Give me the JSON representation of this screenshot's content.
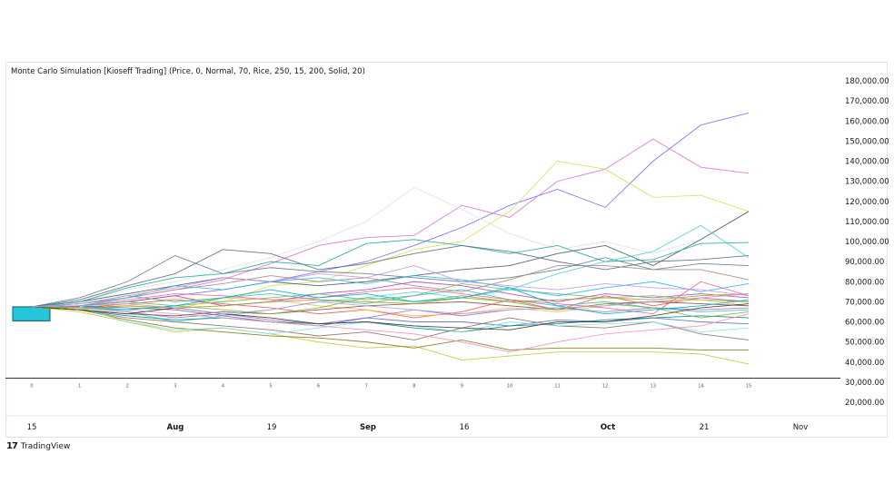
{
  "chart_data": {
    "type": "line",
    "title": "Monte Carlo Simulation [Kioseff Trading] (Price, 0, Normal, 70, Rice, 250, 15, 200, Solid, 20)",
    "ylim": [
      20000,
      180000
    ],
    "y_ticks": [
      "20,000.00",
      "30,000.00",
      "40,000.00",
      "50,000.00",
      "60,000.00",
      "70,000.00",
      "80,000.00",
      "90,000.00",
      "100,000.00",
      "110,000.00",
      "120,000.00",
      "130,000.00",
      "140,000.00",
      "150,000.00",
      "160,000.00",
      "170,000.00",
      "180,000.00"
    ],
    "step_labels": [
      "0",
      "1",
      "2",
      "3",
      "4",
      "5",
      "6",
      "7",
      "8",
      "9",
      "10",
      "11",
      "12",
      "13",
      "14",
      "15"
    ],
    "date_ticks": [
      "15",
      "Aug",
      "19",
      "Sep",
      "16",
      "Oct",
      "21",
      "Nov"
    ],
    "bold_date_ticks": [
      "Aug",
      "Sep",
      "Oct"
    ],
    "start_value": 67500,
    "bar": {
      "open": 67500,
      "close": 60500,
      "color": "#26c6da"
    },
    "series": [
      {
        "color": "#7b68ee",
        "values": [
          67500,
          68000,
          70000,
          73000,
          76000,
          80000,
          85000,
          90000,
          98000,
          107000,
          118000,
          126000,
          117000,
          140000,
          158000,
          164000
        ]
      },
      {
        "color": "#da70d6",
        "values": [
          67500,
          69000,
          72000,
          76000,
          81000,
          89000,
          98000,
          102000,
          103000,
          118000,
          112000,
          130000,
          136000,
          151000,
          137000,
          134000
        ]
      },
      {
        "color": "#d4e157",
        "values": [
          67500,
          66000,
          68000,
          72000,
          70000,
          78000,
          80000,
          88000,
          96000,
          100000,
          115000,
          140000,
          136000,
          122000,
          123000,
          115000
        ]
      },
      {
        "color": "#e0e0e0",
        "values": [
          67500,
          70000,
          76000,
          80000,
          86000,
          92000,
          100000,
          110000,
          127000,
          116000,
          104000,
          96000,
          100000,
          94000,
          101000,
          115000
        ]
      },
      {
        "color": "#455a64",
        "values": [
          67500,
          70000,
          74000,
          78000,
          82000,
          80000,
          78000,
          80000,
          83000,
          86000,
          88000,
          94000,
          98000,
          88000,
          101000,
          115000
        ]
      },
      {
        "color": "#26a69a",
        "values": [
          67500,
          70000,
          77000,
          82000,
          84000,
          90000,
          88000,
          99000,
          101000,
          98000,
          94000,
          98000,
          90000,
          91000,
          99000,
          99500
        ]
      },
      {
        "color": "#607d8b",
        "values": [
          67500,
          72000,
          80000,
          93000,
          84000,
          87000,
          85000,
          84000,
          82000,
          80000,
          82000,
          86000,
          92000,
          86000,
          89000,
          88000
        ]
      },
      {
        "color": "#546e7a",
        "values": [
          67500,
          71000,
          78000,
          84000,
          96000,
          94000,
          86000,
          89000,
          94000,
          98000,
          95000,
          90000,
          86000,
          90000,
          91000,
          93000
        ]
      },
      {
        "color": "#4dd0e1",
        "values": [
          67500,
          68000,
          65000,
          60000,
          63000,
          66000,
          70000,
          72000,
          75000,
          72000,
          76000,
          84000,
          90000,
          95000,
          108000,
          92000
        ]
      },
      {
        "color": "#a1887f",
        "values": [
          67500,
          69000,
          72000,
          76000,
          79000,
          83000,
          80000,
          82000,
          78000,
          75000,
          81000,
          88000,
          88000,
          86000,
          86000,
          81000
        ]
      },
      {
        "color": "#ab47bc",
        "values": [
          67500,
          68000,
          70000,
          73000,
          68000,
          70000,
          74000,
          76000,
          80000,
          78000,
          74000,
          70000,
          74000,
          72000,
          74000,
          72000
        ]
      },
      {
        "color": "#ef5350",
        "values": [
          67500,
          67000,
          69000,
          71000,
          69000,
          67000,
          64000,
          66000,
          62000,
          65000,
          71000,
          66000,
          73000,
          68000,
          72000,
          70000
        ]
      },
      {
        "color": "#66bb6a",
        "values": [
          67500,
          68000,
          70000,
          68000,
          70000,
          72000,
          74000,
          71000,
          73000,
          79000,
          76000,
          74000,
          72000,
          73000,
          71000,
          70000
        ]
      },
      {
        "color": "#ffb74d",
        "values": [
          67500,
          67000,
          68000,
          66000,
          72000,
          71000,
          68000,
          66000,
          63000,
          64000,
          67000,
          65000,
          68000,
          70000,
          71000,
          68000
        ]
      },
      {
        "color": "#9575cd",
        "values": [
          67500,
          67000,
          65000,
          62000,
          64000,
          61000,
          59000,
          62000,
          66000,
          63000,
          66000,
          67000,
          65000,
          67000,
          66000,
          67000
        ]
      },
      {
        "color": "#5c6bc0",
        "values": [
          67500,
          68000,
          67000,
          66000,
          63000,
          60000,
          58000,
          62000,
          60000,
          60000,
          58000,
          61000,
          60000,
          62000,
          60000,
          59000
        ]
      },
      {
        "color": "#00897b",
        "values": [
          67500,
          66000,
          63000,
          61000,
          62000,
          60000,
          59000,
          60000,
          57000,
          55000,
          58000,
          59000,
          61000,
          62000,
          63000,
          62000
        ]
      },
      {
        "color": "#8d6e63",
        "values": [
          67500,
          66000,
          62000,
          60000,
          58000,
          56000,
          53000,
          55000,
          51000,
          57000,
          62000,
          58000,
          57000,
          60000,
          54000,
          51000
        ]
      },
      {
        "color": "#c0ca33",
        "values": [
          67500,
          65000,
          60000,
          55000,
          57000,
          54000,
          50000,
          47000,
          48000,
          41000,
          43000,
          45000,
          45000,
          45000,
          44000,
          39000
        ]
      },
      {
        "color": "#827717",
        "values": [
          67500,
          66000,
          61000,
          57000,
          55000,
          53000,
          52000,
          50000,
          47000,
          51000,
          46000,
          47000,
          47000,
          47000,
          46000,
          46000
        ]
      },
      {
        "color": "#80deea",
        "values": [
          67500,
          67000,
          60000,
          56000,
          57000,
          54000,
          57000,
          60000,
          58000,
          55000,
          60000,
          58000,
          59000,
          60000,
          55000,
          57000
        ]
      },
      {
        "color": "#f48fb1",
        "values": [
          67500,
          67000,
          66000,
          64000,
          62000,
          60000,
          58000,
          56000,
          54000,
          50000,
          45000,
          50000,
          54000,
          56000,
          58000,
          64000
        ]
      },
      {
        "color": "#4db6ac",
        "values": [
          67500,
          69000,
          73000,
          70000,
          72000,
          74000,
          71000,
          69000,
          73000,
          76000,
          71000,
          68000,
          70000,
          67000,
          65000,
          66000
        ]
      },
      {
        "color": "#f06292",
        "values": [
          67500,
          68000,
          71000,
          74000,
          73000,
          71000,
          72000,
          75000,
          77000,
          74000,
          71000,
          69000,
          67000,
          64000,
          80000,
          73000
        ]
      },
      {
        "color": "#795548",
        "values": [
          67500,
          66000,
          64000,
          63000,
          65000,
          64000,
          66000,
          68000,
          69000,
          70000,
          68000,
          66000,
          69000,
          70000,
          69000,
          68000
        ]
      },
      {
        "color": "#9e9d24",
        "values": [
          67500,
          67000,
          68000,
          67000,
          68000,
          70000,
          71000,
          70000,
          69000,
          72000,
          70000,
          71000,
          72000,
          71000,
          73000,
          74000
        ]
      },
      {
        "color": "#29b6f6",
        "values": [
          67500,
          68000,
          72000,
          78000,
          76000,
          80000,
          82000,
          79000,
          83000,
          81000,
          77000,
          73000,
          77000,
          80000,
          75000,
          79000
        ]
      },
      {
        "color": "#ce93d8",
        "values": [
          67500,
          69000,
          73000,
          77000,
          82000,
          80000,
          84000,
          82000,
          88000,
          80000,
          78000,
          76000,
          79000,
          77000,
          76000,
          73000
        ]
      },
      {
        "color": "#7cb342",
        "values": [
          67500,
          67000,
          66000,
          68000,
          66000,
          64000,
          67000,
          72000,
          70000,
          73000,
          70000,
          66000,
          69000,
          67000,
          62000,
          65000
        ]
      },
      {
        "color": "#4e342e",
        "values": [
          67500,
          66000,
          64000,
          67000,
          64000,
          62000,
          59000,
          60000,
          58000,
          57000,
          56000,
          60000,
          60000,
          63000,
          67000,
          69000
        ]
      },
      {
        "color": "#00acc1",
        "values": [
          67500,
          68000,
          66000,
          68000,
          72000,
          76000,
          72000,
          74000,
          70000,
          72000,
          77000,
          68000,
          64000,
          66000,
          68000,
          71000
        ]
      },
      {
        "color": "#b39ddb",
        "values": [
          67500,
          68000,
          69000,
          67000,
          64000,
          66000,
          70000,
          68000,
          66000,
          64000,
          66000,
          67000,
          68000,
          70000,
          72000,
          74000
        ]
      }
    ]
  },
  "brand": {
    "logo_mark": "17",
    "logo_text": "TradingView"
  }
}
